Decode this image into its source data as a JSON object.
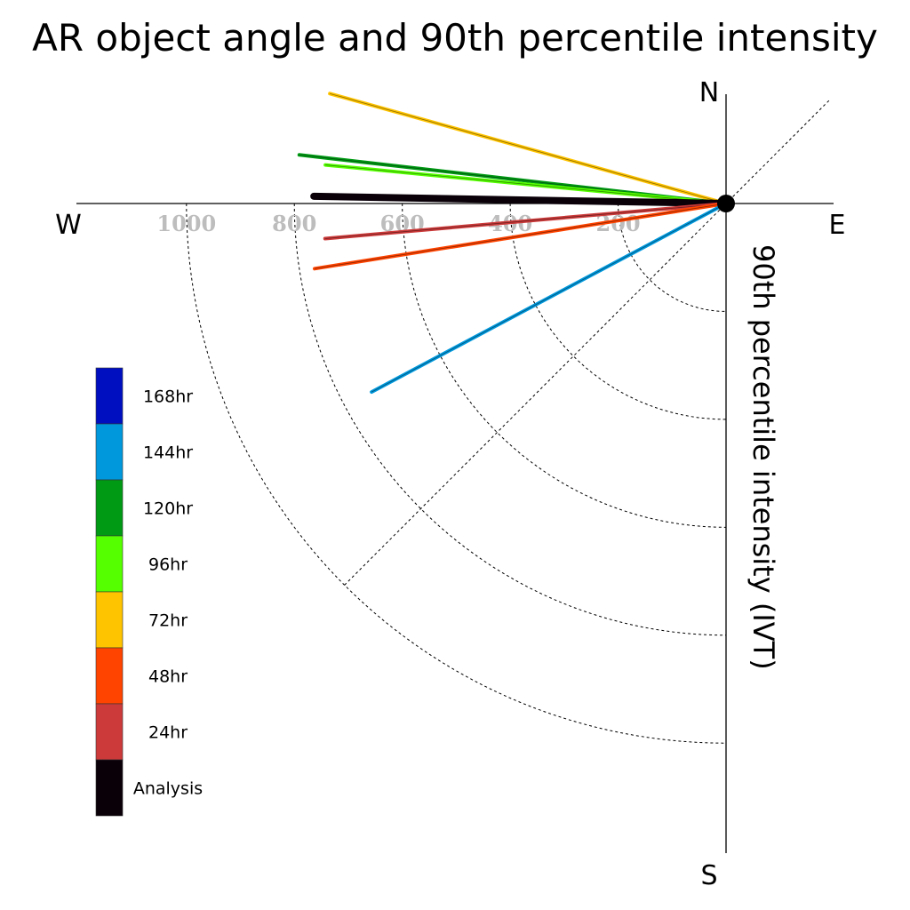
{
  "chart_data": {
    "type": "polar-vector",
    "title": "AR object angle and 90th percentile intensity",
    "radial_label": "90th percentile intensity (IVT)",
    "compass": {
      "north": "N",
      "south": "S",
      "east": "E",
      "west": "W"
    },
    "radial_ticks": [
      200,
      400,
      600,
      800,
      1000
    ],
    "radial_tick_labels": [
      "200",
      "400",
      "600",
      "800",
      "1000"
    ],
    "grid": true,
    "legend_placement": "left",
    "legend": [
      {
        "label": "168hr",
        "color": "#0010c0"
      },
      {
        "label": "144hr",
        "color": "#0098dc"
      },
      {
        "label": "120hr",
        "color": "#009a14"
      },
      {
        "label": "96hr",
        "color": "#55ff00"
      },
      {
        "label": "72hr",
        "color": "#ffc400"
      },
      {
        "label": "48hr",
        "color": "#ff4400"
      },
      {
        "label": "24hr",
        "color": "#cc3a3a"
      },
      {
        "label": "Analysis",
        "color": "#0a0008"
      }
    ],
    "series": [
      {
        "name": "72hr",
        "angle_deg": 164.5,
        "intensity": 762,
        "color": "#ffc400"
      },
      {
        "name": "120hr",
        "angle_deg": 173.5,
        "intensity": 796,
        "color": "#009a14"
      },
      {
        "name": "96hr",
        "angle_deg": 174.5,
        "intensity": 746,
        "color": "#55ff00"
      },
      {
        "name": "Analysis",
        "angle_deg": 179.0,
        "intensity": 764,
        "color": "#0a0008"
      },
      {
        "name": "24hr",
        "angle_deg": 185.0,
        "intensity": 746,
        "color": "#cc3a3a"
      },
      {
        "name": "48hr",
        "angle_deg": 189.0,
        "intensity": 772,
        "color": "#ff4400"
      },
      {
        "name": "144hr",
        "angle_deg": 208.0,
        "intensity": 744,
        "color": "#0098dc"
      }
    ]
  }
}
